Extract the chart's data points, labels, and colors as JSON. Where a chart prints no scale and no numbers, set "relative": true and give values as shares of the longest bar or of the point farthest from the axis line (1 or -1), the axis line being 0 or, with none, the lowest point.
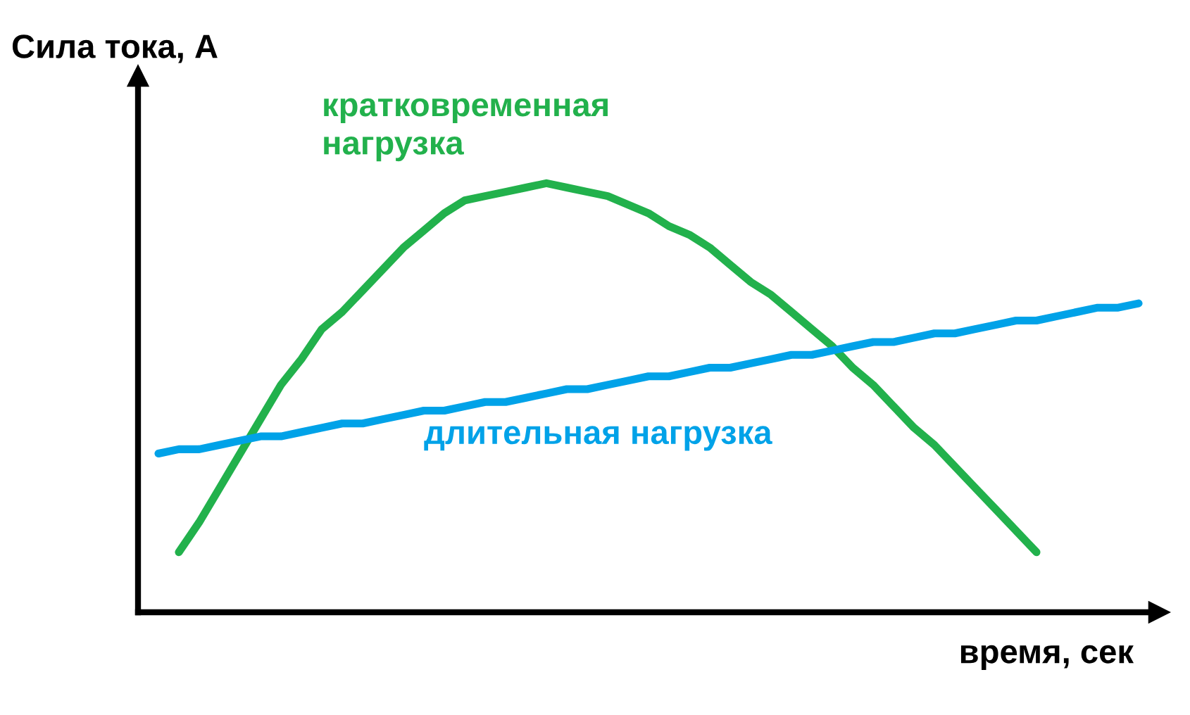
{
  "chart_data": {
    "type": "line",
    "relative": true,
    "xlabel": "время, сек",
    "ylabel": "Сила тока, А",
    "categories": [
      null,
      null,
      null,
      null,
      null,
      null,
      null,
      null,
      null,
      null,
      null,
      null,
      null,
      null,
      null,
      null,
      null,
      null,
      null,
      null,
      null,
      null,
      null,
      null,
      null,
      null,
      null,
      null,
      null,
      null,
      null,
      null,
      null,
      null,
      null,
      null,
      null,
      null,
      null,
      null,
      null,
      null,
      null,
      null,
      null,
      null,
      null,
      null,
      null
    ],
    "series": [
      {
        "name": "кратковременная\nнагрузка",
        "color": "#22b14c",
        "values": [
          null,
          0.14,
          0.21,
          0.29,
          0.37,
          0.45,
          0.53,
          0.59,
          0.66,
          0.7,
          0.75,
          0.8,
          0.85,
          0.89,
          0.93,
          0.96,
          0.97,
          0.98,
          0.99,
          1.0,
          0.99,
          0.98,
          0.97,
          0.95,
          0.93,
          0.9,
          0.88,
          0.85,
          0.81,
          0.77,
          0.74,
          0.7,
          0.66,
          0.62,
          0.57,
          0.53,
          0.48,
          0.43,
          0.39,
          0.34,
          0.29,
          0.24,
          0.19,
          0.14,
          null,
          null,
          null,
          null,
          null
        ]
      },
      {
        "name": "длительная нагрузка",
        "color": "#00a2e8",
        "values": [
          0.37,
          0.38,
          0.38,
          0.39,
          0.4,
          0.41,
          0.41,
          0.42,
          0.43,
          0.44,
          0.44,
          0.45,
          0.46,
          0.47,
          0.47,
          0.48,
          0.49,
          0.49,
          0.5,
          0.51,
          0.52,
          0.52,
          0.53,
          0.54,
          0.55,
          0.55,
          0.56,
          0.57,
          0.57,
          0.58,
          0.59,
          0.6,
          0.6,
          0.61,
          0.62,
          0.63,
          0.63,
          0.64,
          0.65,
          0.65,
          0.66,
          0.67,
          0.68,
          0.68,
          0.69,
          0.7,
          0.71,
          0.71,
          0.72
        ]
      }
    ],
    "marker": "none",
    "line_style": "solid"
  }
}
